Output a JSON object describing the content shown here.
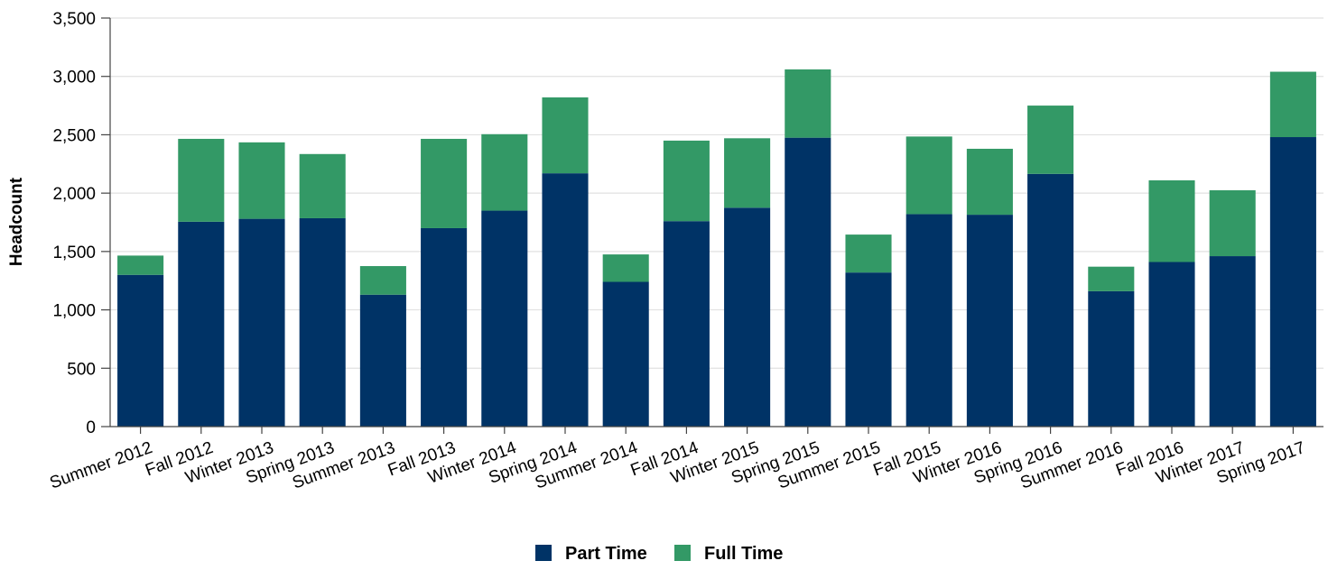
{
  "chart_data": {
    "type": "bar",
    "stacked": true,
    "title": "",
    "xlabel": "",
    "ylabel": "Headcount",
    "ylim": [
      0,
      3500
    ],
    "yticks": [
      0,
      500,
      1000,
      1500,
      2000,
      2500,
      3000,
      3500
    ],
    "ytick_labels": [
      "0",
      "500",
      "1,000",
      "1,500",
      "2,000",
      "2,500",
      "3,000",
      "3,500"
    ],
    "grid": "horizontal",
    "legend_position": "bottom-center",
    "categories": [
      "Summer 2012",
      "Fall 2012",
      "Winter 2013",
      "Spring 2013",
      "Summer 2013",
      "Fall 2013",
      "Winter 2014",
      "Spring 2014",
      "Summer 2014",
      "Fall 2014",
      "Winter 2015",
      "Spring 2015",
      "Summer 2015",
      "Fall 2015",
      "Winter 2016",
      "Spring 2016",
      "Summer 2016",
      "Fall 2016",
      "Winter 2017",
      "Spring 2017"
    ],
    "series": [
      {
        "name": "Part Time",
        "color": "#003366",
        "values": [
          1300,
          1755,
          1780,
          1785,
          1130,
          1700,
          1850,
          2170,
          1240,
          1760,
          1875,
          2475,
          1320,
          1820,
          1815,
          2165,
          1160,
          1410,
          1460,
          2480
        ]
      },
      {
        "name": "Full Time",
        "color": "#339966",
        "values": [
          165,
          710,
          655,
          550,
          245,
          765,
          655,
          650,
          235,
          690,
          595,
          585,
          325,
          665,
          565,
          585,
          210,
          700,
          565,
          560
        ]
      }
    ]
  }
}
